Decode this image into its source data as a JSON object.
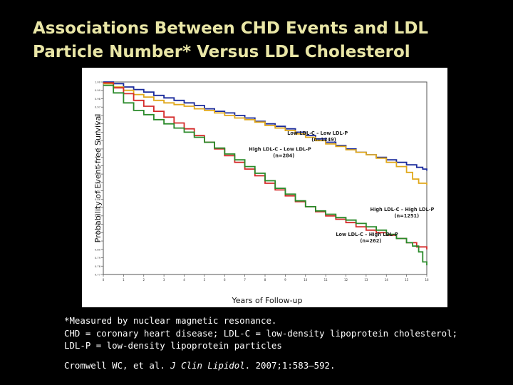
{
  "slide": {
    "title_line1": "Associations Between CHD Events and LDL",
    "title_line2": "Particle Number* Versus LDL Cholesterol",
    "footnote_line1": "*Measured by nuclear magnetic resonance.",
    "footnote_line2": "CHD = coronary heart disease; LDL-C = low-density lipoprotein cholesterol;",
    "footnote_line3": "LDL-P = low-density lipoprotein particles",
    "citation_authors": "Cromwell WC, et al.",
    "citation_journal": "J Clin Lipidol",
    "citation_rest": ". 2007;1:583–592."
  },
  "colors": {
    "background": "#000000",
    "title": "#e9e6a6",
    "text": "#ffffff",
    "low_low": "#1a2a9c",
    "high_low": "#e0a81c",
    "high_high": "#d42a2a",
    "low_high": "#2a8a2a"
  },
  "chart_data": {
    "type": "line",
    "title": "",
    "xlabel": "Years of Follow-up",
    "ylabel": "Probability of Event-free Survival",
    "xlim": [
      0,
      16
    ],
    "ylim": [
      0.77,
      1.0
    ],
    "x_ticks": [
      0,
      1,
      2,
      3,
      4,
      5,
      6,
      7,
      8,
      9,
      10,
      11,
      12,
      13,
      14,
      15,
      16
    ],
    "y_ticks": [
      0.77,
      0.78,
      0.79,
      0.8,
      0.81,
      0.82,
      0.83,
      0.84,
      0.85,
      0.86,
      0.87,
      0.88,
      0.89,
      0.9,
      0.91,
      0.92,
      0.93,
      0.94,
      0.95,
      0.96,
      0.97,
      0.98,
      0.99,
      1.0
    ],
    "series": [
      {
        "key": "low_low",
        "name": "Low LDL-C – Low LDL-P",
        "n_label": "(n=1249)",
        "x": [
          0,
          0.5,
          1,
          1.5,
          2,
          2.5,
          3,
          3.5,
          4,
          4.5,
          5,
          5.5,
          6,
          6.5,
          7,
          7.5,
          8,
          8.5,
          9,
          9.5,
          10,
          10.5,
          11,
          11.5,
          12,
          12.5,
          13,
          13.5,
          14,
          14.5,
          15,
          15.5,
          15.8,
          16
        ],
        "y": [
          1.0,
          0.998,
          0.994,
          0.991,
          0.988,
          0.984,
          0.981,
          0.978,
          0.975,
          0.972,
          0.968,
          0.965,
          0.963,
          0.96,
          0.957,
          0.953,
          0.95,
          0.947,
          0.944,
          0.94,
          0.936,
          0.932,
          0.928,
          0.924,
          0.92,
          0.916,
          0.913,
          0.91,
          0.907,
          0.904,
          0.901,
          0.898,
          0.896,
          0.894
        ]
      },
      {
        "key": "high_low",
        "name": "High LDL-C – Low LDL-P",
        "n_label": "(n=284)",
        "x": [
          0,
          0.5,
          1,
          1.5,
          2,
          2.5,
          3,
          3.5,
          4,
          4.5,
          5,
          5.5,
          6,
          6.5,
          7,
          7.5,
          8,
          8.5,
          9,
          9.5,
          10,
          10.5,
          11,
          11.5,
          12,
          12.5,
          13,
          13.5,
          14,
          14.5,
          15,
          15.3,
          15.6,
          16
        ],
        "y": [
          0.998,
          0.994,
          0.99,
          0.985,
          0.982,
          0.978,
          0.975,
          0.973,
          0.971,
          0.968,
          0.966,
          0.963,
          0.96,
          0.957,
          0.955,
          0.952,
          0.948,
          0.945,
          0.942,
          0.938,
          0.934,
          0.93,
          0.926,
          0.923,
          0.919,
          0.916,
          0.913,
          0.909,
          0.904,
          0.899,
          0.892,
          0.884,
          0.879,
          0.877
        ]
      },
      {
        "key": "high_high",
        "name": "High LDL-C – High LDL-P",
        "n_label": "(n=1251)",
        "x": [
          0,
          0.5,
          1,
          1.5,
          2,
          2.5,
          3,
          3.5,
          4,
          4.5,
          5,
          5.5,
          6,
          6.5,
          7,
          7.5,
          8,
          8.5,
          9,
          9.5,
          10,
          10.5,
          11,
          11.5,
          12,
          12.5,
          13,
          13.5,
          14,
          14.5,
          15,
          15.5,
          16
        ],
        "y": [
          0.999,
          0.993,
          0.986,
          0.978,
          0.971,
          0.965,
          0.958,
          0.951,
          0.944,
          0.936,
          0.928,
          0.92,
          0.912,
          0.904,
          0.896,
          0.888,
          0.879,
          0.871,
          0.864,
          0.857,
          0.851,
          0.845,
          0.84,
          0.836,
          0.832,
          0.827,
          0.823,
          0.82,
          0.817,
          0.813,
          0.808,
          0.803,
          0.8
        ]
      },
      {
        "key": "low_high",
        "name": "Low LDL-C – High LDL-P",
        "n_label": "(n=262)",
        "x": [
          0,
          0.5,
          1,
          1.5,
          2,
          2.5,
          3,
          3.5,
          4,
          4.5,
          5,
          5.5,
          6,
          6.5,
          7,
          7.5,
          8,
          8.5,
          9,
          9.5,
          10,
          10.5,
          11,
          11.5,
          12,
          12.5,
          13,
          13.5,
          14,
          14.5,
          15,
          15.3,
          15.6,
          15.8,
          16
        ],
        "y": [
          0.996,
          0.987,
          0.975,
          0.966,
          0.961,
          0.955,
          0.95,
          0.945,
          0.94,
          0.934,
          0.928,
          0.921,
          0.914,
          0.907,
          0.899,
          0.891,
          0.882,
          0.873,
          0.866,
          0.858,
          0.851,
          0.846,
          0.842,
          0.838,
          0.835,
          0.831,
          0.827,
          0.823,
          0.818,
          0.813,
          0.808,
          0.804,
          0.797,
          0.785,
          0.781
        ]
      }
    ],
    "annotations": [
      {
        "series": "low_low",
        "x": 9.1,
        "y": 0.937
      },
      {
        "series": "high_low",
        "x": 7.2,
        "y": 0.918
      },
      {
        "series": "high_high",
        "x": 13.2,
        "y": 0.846
      },
      {
        "series": "low_high",
        "x": 11.5,
        "y": 0.816
      }
    ]
  }
}
